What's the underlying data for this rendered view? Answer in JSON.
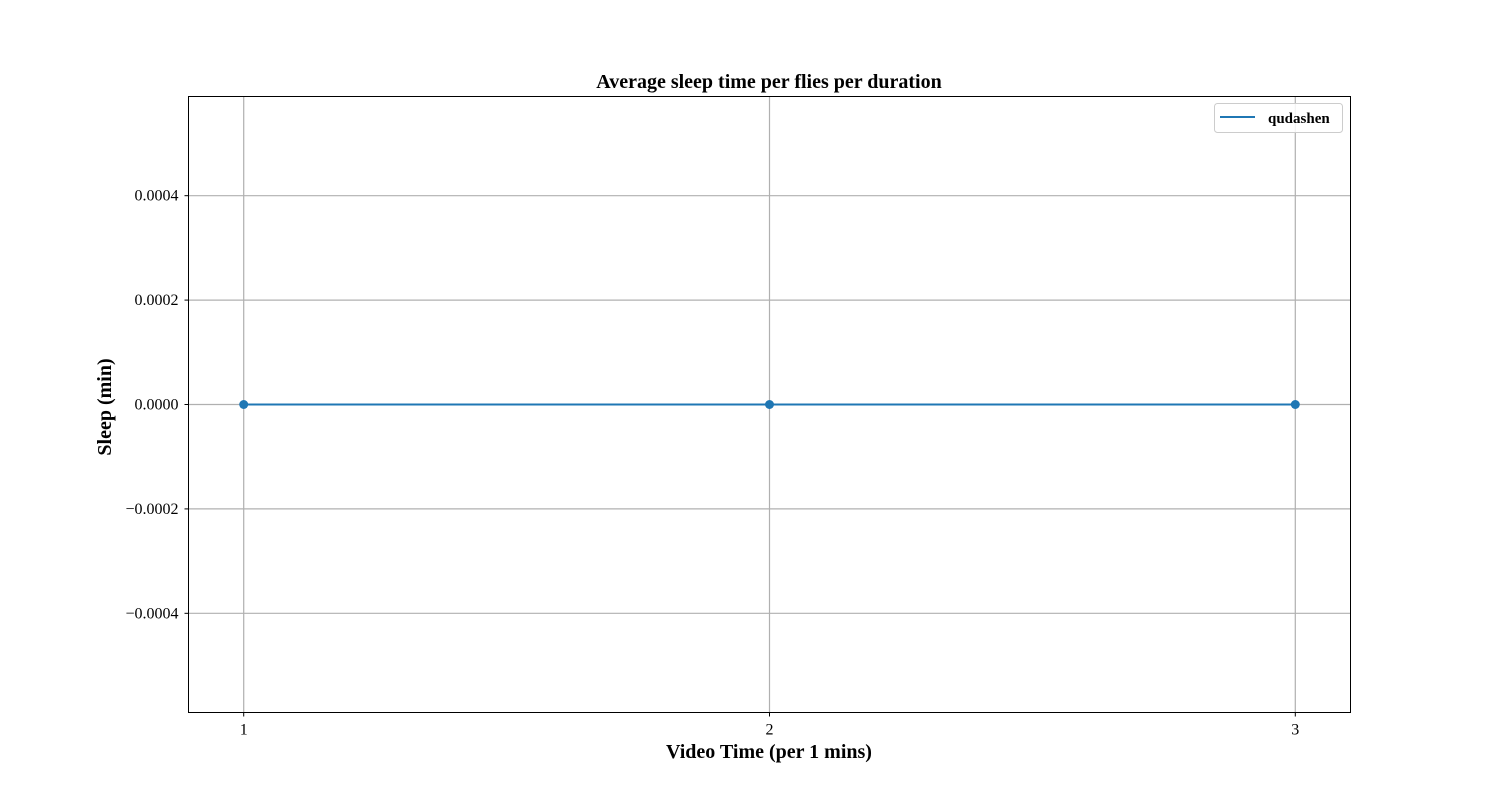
{
  "chart_data": {
    "type": "line",
    "title": "Average sleep time per flies per duration",
    "xlabel": "Video Time (per 1 mins)",
    "ylabel": "Sleep (min)",
    "x": [
      1,
      2,
      3
    ],
    "xticks": [
      "1",
      "2",
      "3"
    ],
    "xlim": [
      0.895,
      3.105
    ],
    "yticks": [
      -0.0004,
      -0.0002,
      0.0,
      0.0002,
      0.0004
    ],
    "ytick_labels": [
      "−0.0004",
      "−0.0002",
      "0.0000",
      "0.0002",
      "0.0004"
    ],
    "ylim": [
      -0.00059,
      0.00059
    ],
    "grid": true,
    "legend_position": "top-right",
    "series": [
      {
        "name": "qudashen",
        "values": [
          0.0,
          0.0,
          0.0
        ],
        "color": "#1f77b4",
        "marker": "circle"
      }
    ]
  }
}
